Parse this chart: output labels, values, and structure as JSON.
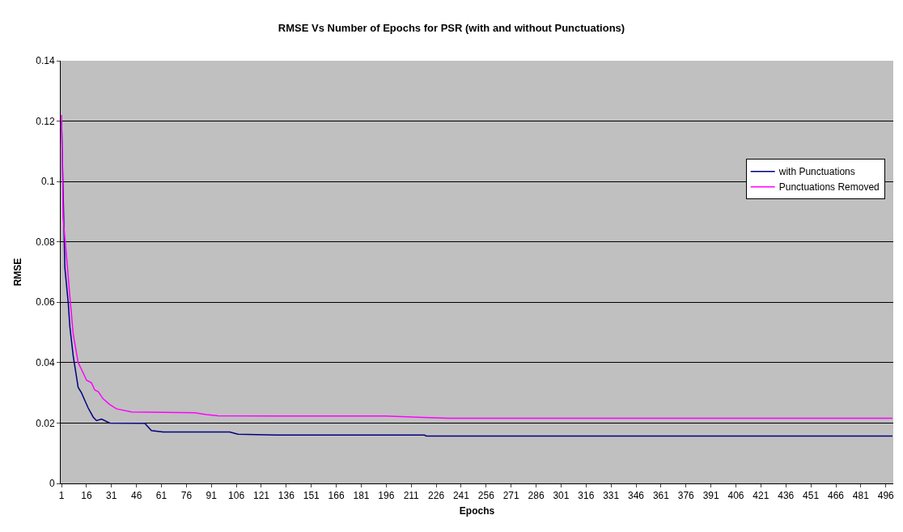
{
  "chart_data": {
    "type": "line",
    "title": "RMSE Vs Number of Epochs for PSR (with and without Punctuations)",
    "xlabel": "Epochs",
    "ylabel": "RMSE",
    "xlim": [
      0.5,
      500.5
    ],
    "xticks": [
      1,
      16,
      31,
      46,
      61,
      76,
      91,
      106,
      121,
      136,
      151,
      166,
      181,
      196,
      211,
      226,
      241,
      256,
      271,
      286,
      301,
      316,
      331,
      346,
      361,
      376,
      391,
      406,
      421,
      436,
      451,
      466,
      481,
      496
    ],
    "ylim": [
      0,
      0.14
    ],
    "yticks": [
      0,
      0.02,
      0.04,
      0.06,
      0.08,
      0.1,
      0.12,
      0.14
    ],
    "grid": "y",
    "legend": "right",
    "marker": "none",
    "line_style": "solid",
    "series": [
      {
        "name": "with Punctuations",
        "color": "#000080",
        "x": [
          1,
          3,
          5,
          6,
          8,
          11,
          13,
          15,
          17,
          20,
          22,
          25,
          30,
          51,
          55,
          62,
          102,
          107,
          130,
          219,
          220,
          500
        ],
        "values": [
          0.12,
          0.0715,
          0.06,
          0.052,
          0.0423,
          0.0318,
          0.03,
          0.0275,
          0.025,
          0.022,
          0.0208,
          0.0213,
          0.02,
          0.0199,
          0.0175,
          0.017,
          0.017,
          0.0163,
          0.016,
          0.016,
          0.0157,
          0.0157
        ]
      },
      {
        "name": "Punctuations Removed",
        "color": "#ff00ff",
        "x": [
          1,
          2,
          4,
          6,
          8,
          11,
          14,
          16,
          19,
          21,
          23,
          26,
          30,
          34,
          43,
          81,
          88,
          95,
          130,
          195,
          233,
          500
        ],
        "values": [
          0.122,
          0.0877,
          0.0753,
          0.062,
          0.0495,
          0.04,
          0.0366,
          0.0342,
          0.0333,
          0.0309,
          0.0304,
          0.028,
          0.0261,
          0.0247,
          0.0237,
          0.0234,
          0.0228,
          0.0224,
          0.0223,
          0.0223,
          0.0216,
          0.0216
        ]
      }
    ]
  }
}
